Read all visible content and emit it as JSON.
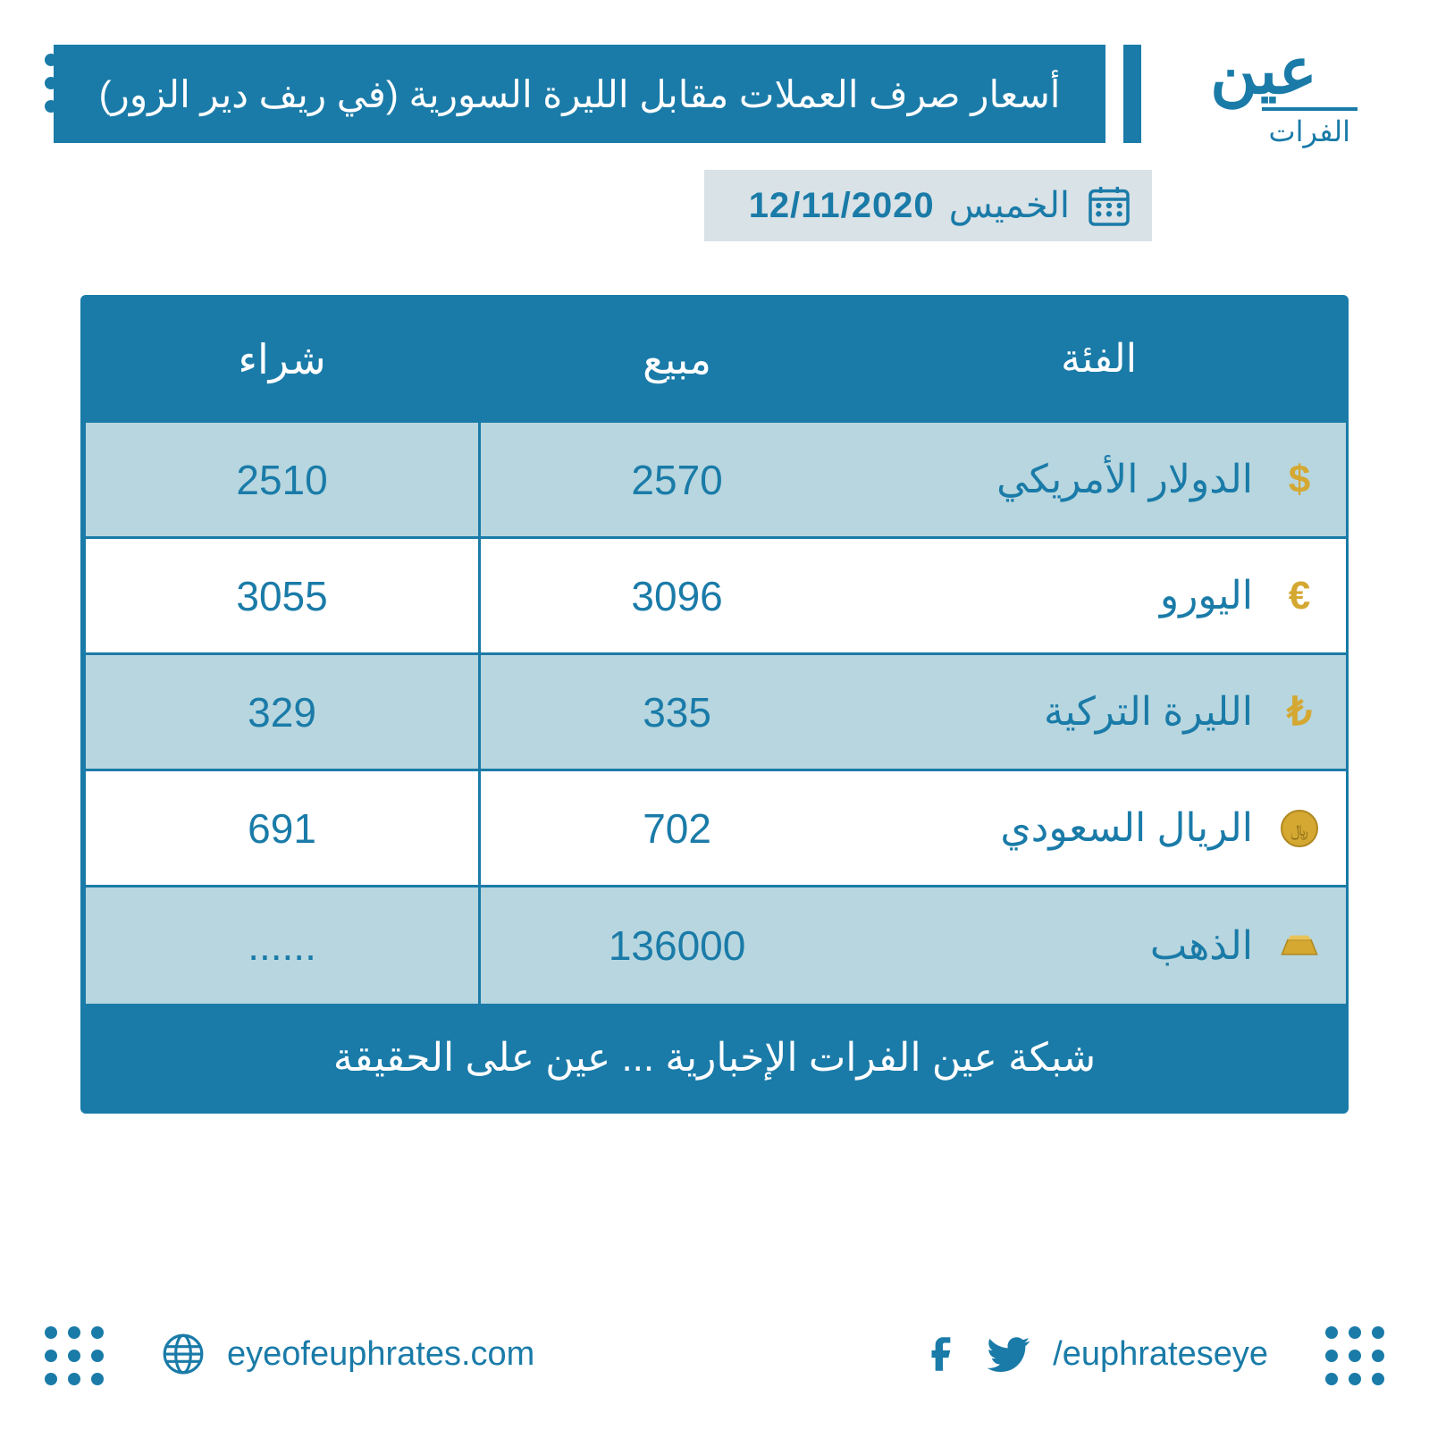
{
  "colors": {
    "primary": "#1a7ba8",
    "alt_row": "#b7d6df",
    "plain_row": "#ffffff",
    "date_bg": "#d9e2e6",
    "gold": "#d4a831",
    "text": "#1a7ba8"
  },
  "logo": {
    "main": "عين",
    "sub": "الفرات"
  },
  "title": "أسعار صرف العملات مقابل الليرة السورية (في ريف دير الزور)",
  "date": {
    "day": "الخميس",
    "date": "12/11/2020"
  },
  "table": {
    "headers": {
      "category": "الفئة",
      "sell": "مبيع",
      "buy": "شراء"
    },
    "rows": [
      {
        "label": "الدولار الأمريكي",
        "sell": "2570",
        "buy": "2510",
        "alt": true,
        "icon": "dollar"
      },
      {
        "label": "اليورو",
        "sell": "3096",
        "buy": "3055",
        "alt": false,
        "icon": "euro"
      },
      {
        "label": "الليرة التركية",
        "sell": "335",
        "buy": "329",
        "alt": true,
        "icon": "lira"
      },
      {
        "label": "الريال السعودي",
        "sell": "702",
        "buy": "691",
        "alt": false,
        "icon": "riyal"
      },
      {
        "label": "الذهب",
        "sell": "136000",
        "buy": "......",
        "alt": true,
        "icon": "gold"
      }
    ],
    "footer": "شبكة عين الفرات الإخبارية ... عين على الحقيقة"
  },
  "bottom": {
    "website": "eyeofeuphrates.com",
    "handle": "/euphrateseye"
  },
  "typography": {
    "title_fontsize": 42,
    "header_fontsize": 46,
    "cell_fontsize": 46,
    "footer_fontsize": 44,
    "date_fontsize": 40
  }
}
